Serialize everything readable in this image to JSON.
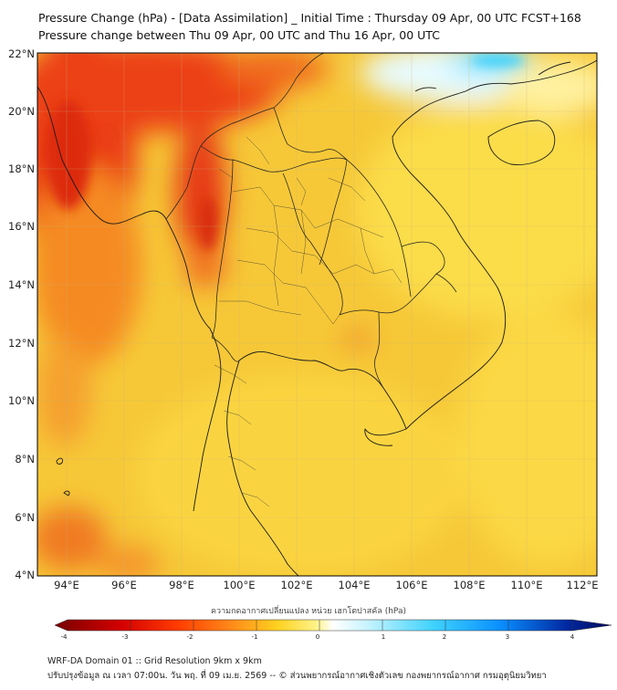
{
  "header": {
    "title_line1": "Pressure Change (hPa) - [Data Assimilation] _ Initial Time : Thursday 09 Apr, 00 UTC FCST+168",
    "title_line2": "Pressure change between Thu 09 Apr, 00 UTC and Thu 16 Apr, 00 UTC"
  },
  "map": {
    "lon_range": [
      93,
      112.5
    ],
    "lat_range": [
      4,
      22.3
    ],
    "lon_ticks": [
      "94°E",
      "96°E",
      "98°E",
      "100°E",
      "102°E",
      "104°E",
      "106°E",
      "108°E",
      "110°E",
      "112°E"
    ],
    "lat_ticks": [
      "22°N",
      "20°N",
      "18°N",
      "16°N",
      "14°N",
      "12°N",
      "10°N",
      "8°N",
      "6°N",
      "4°N"
    ],
    "gridlines": true,
    "background_color": "#f7d234"
  },
  "colorbar": {
    "title": "ความกดอากาศเปลี่ยนแปลง หน่วย เฮกโตปาสคัล (hPa)",
    "ticks": [
      "-4",
      "-3",
      "-2",
      "-1",
      "0",
      "1",
      "2",
      "3",
      "4"
    ],
    "range": [
      -4,
      4
    ],
    "colors": [
      "#7a0000",
      "#d40000",
      "#ff3b00",
      "#ff8c1a",
      "#ffd21f",
      "#fff38a",
      "#ffffff",
      "#c8f4ff",
      "#3fd2ff",
      "#0a8fff",
      "#0028a0",
      "#020a5a"
    ]
  },
  "footer": {
    "line1": "WRF-DA Domain 01 :: Grid Resolution 9km x 9km",
    "line2": "ปรับปรุงข้อมูล ณ เวลา 07:00น. วัน พฤ. ที่ 09 เม.ย. 2569 -- © ส่วนพยากรณ์อากาศเชิงตัวเลข กองพยากรณ์อากาศ กรมอุตุนิยมวิทยา"
  }
}
